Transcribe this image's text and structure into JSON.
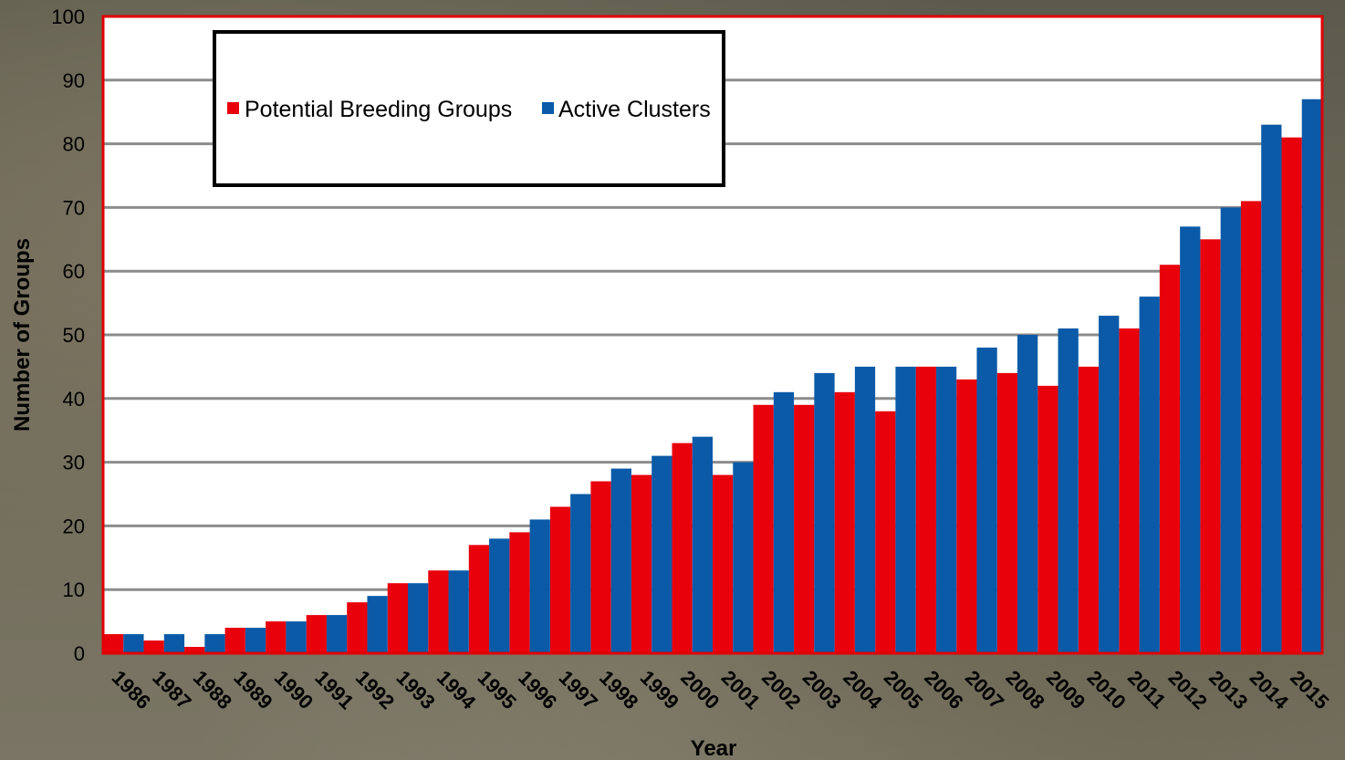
{
  "chart_data": {
    "type": "bar",
    "categories": [
      "1986",
      "1987",
      "1988",
      "1989",
      "1990",
      "1991",
      "1992",
      "1993",
      "1994",
      "1995",
      "1996",
      "1997",
      "1998",
      "1999",
      "2000",
      "2001",
      "2002",
      "2003",
      "2004",
      "2005",
      "2006",
      "2007",
      "2008",
      "2009",
      "2010",
      "2011",
      "2012",
      "2013",
      "2014",
      "2015"
    ],
    "series": [
      {
        "name": "Potential Breeding Groups",
        "color": "#e8000b",
        "values": [
          3,
          2,
          1,
          4,
          5,
          6,
          8,
          11,
          13,
          17,
          19,
          23,
          27,
          28,
          33,
          28,
          39,
          39,
          41,
          38,
          45,
          43,
          44,
          42,
          45,
          51,
          61,
          65,
          71,
          81
        ]
      },
      {
        "name": "Active Clusters",
        "color": "#0a5aa8",
        "values": [
          3,
          3,
          3,
          4,
          5,
          6,
          9,
          11,
          13,
          18,
          21,
          25,
          29,
          31,
          34,
          30,
          41,
          44,
          45,
          45,
          45,
          48,
          50,
          51,
          53,
          56,
          67,
          70,
          83,
          87
        ]
      }
    ],
    "xlabel": "Year",
    "ylabel": "Number of Groups",
    "ylim": [
      0,
      100
    ],
    "yticks": [
      0,
      10,
      20,
      30,
      40,
      50,
      60,
      70,
      80,
      90,
      100
    ],
    "grid": true,
    "legend_position": "top-left",
    "plot_border_color": "#e00000"
  }
}
